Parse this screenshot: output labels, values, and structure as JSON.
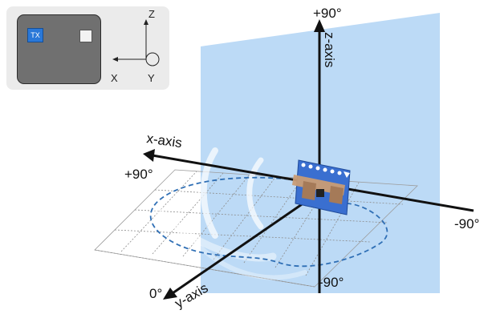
{
  "inset": {
    "tx_label": "TX",
    "axis_z": "Z",
    "axis_x": "X",
    "axis_y": "Y"
  },
  "diagram": {
    "z_axis_label": "z-axis",
    "x_axis_label": "x-axis",
    "y_axis_label": "y-axis",
    "angle_top": "+90°",
    "angle_left": "+90°",
    "angle_right": "-90°",
    "angle_bottom": "-90°",
    "angle_front": "0°"
  },
  "colors": {
    "plane_fill": "#b8d8f6",
    "pattern_stroke": "#2f6fb5",
    "board_blue": "#3a6fd0",
    "axis_color": "#111111"
  }
}
